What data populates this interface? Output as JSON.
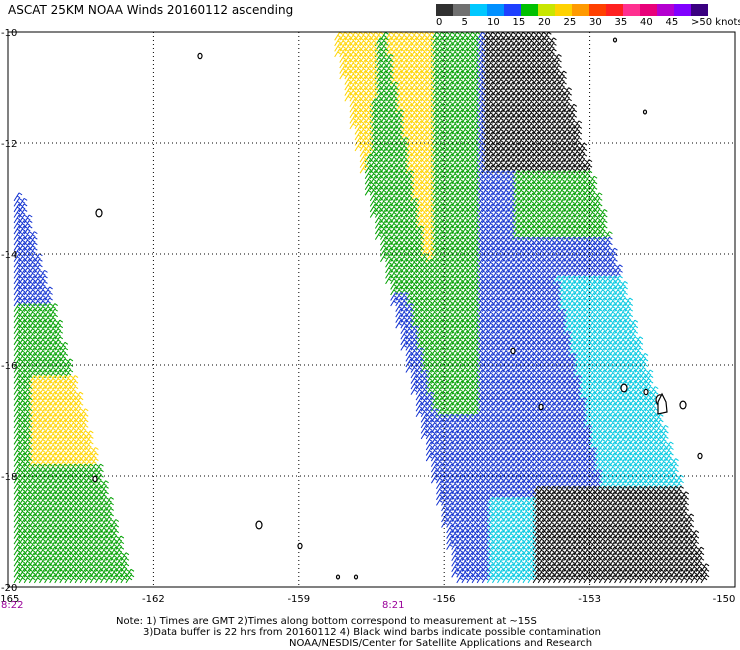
{
  "title": "ASCAT 25KM NOAA Winds 20160112 ascending",
  "scale": {
    "labels": [
      "0",
      "5",
      "10",
      "15",
      "20",
      "25",
      "30",
      "35",
      "40",
      "45",
      ">50 knots"
    ],
    "colors": [
      "#303030",
      "#707070",
      "#00c8ff",
      "#0090ff",
      "#1e40ff",
      "#00c000",
      "#c8e600",
      "#ffd200",
      "#ff9a00",
      "#ff4000",
      "#ff2020",
      "#ff3090",
      "#e8007a",
      "#b400d0",
      "#8000ff",
      "#3a0080"
    ]
  },
  "axes": {
    "lon_labels": [
      "-165",
      "-162",
      "-159",
      "-156",
      "-153",
      "-150"
    ],
    "lat_labels": [
      "-10",
      "-12",
      "-14",
      "-16",
      "-18",
      "-20"
    ],
    "lon_range": [
      -165,
      -150
    ],
    "lat_range": [
      -20,
      -10
    ]
  },
  "pass_times": [
    "8:22",
    "8:21"
  ],
  "notes": {
    "line1": "Note: 1) Times are GMT 2)Times along bottom correspond to measurement at ~15S",
    "line2": "3)Data buffer is 22 hrs from 20160112 4) Black wind barbs indicate possible contamination",
    "line3": "NOAA/NESDIS/Center for Satellite Applications and Research"
  },
  "colors": {
    "frame": "#000000",
    "grid": "#000000",
    "time_label": "#9a009a",
    "barb_yellow": "#ffd400",
    "barb_orange": "#e09000",
    "barb_green": "#00a000",
    "barb_blue": "#1030d0",
    "barb_cyan": "#00c8e0",
    "barb_black": "#000000"
  },
  "swaths": [
    {
      "name": "west-swath",
      "polygon": [
        [
          -165.4,
          -13.0
        ],
        [
          -164.8,
          -13.0
        ],
        [
          -162.5,
          -20.0
        ],
        [
          -165.4,
          -20.0
        ]
      ]
    },
    {
      "name": "main-swath",
      "polygon": [
        [
          -158.4,
          -10.0
        ],
        [
          -153.9,
          -10.0
        ],
        [
          -150.6,
          -20.0
        ],
        [
          -155.8,
          -20.0
        ]
      ]
    }
  ]
}
